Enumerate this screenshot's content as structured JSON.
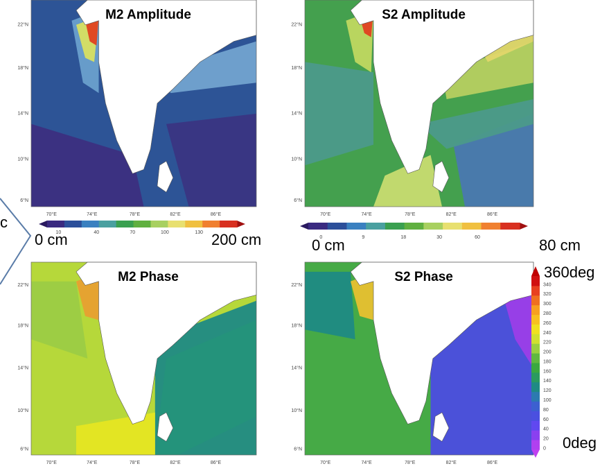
{
  "edge_text": "c",
  "panels": [
    {
      "title": "M2 Amplitude"
    },
    {
      "title": "S2 Amplitude"
    },
    {
      "title": "M2 Phase"
    },
    {
      "title": "S2 Phase"
    }
  ],
  "lat_labels": [
    "22°N",
    "18°N",
    "14°N",
    "10°N",
    "6°N"
  ],
  "lon_labels": [
    "70°E",
    "74°E",
    "78°E",
    "82°E",
    "86°E"
  ],
  "colorbars": {
    "m2": {
      "ticks": [
        "10",
        "40",
        "70",
        "100",
        "130"
      ],
      "min_label": "0 cm",
      "max_label": "200 cm"
    },
    "s2": {
      "ticks": [
        "0",
        "9",
        "18",
        "30",
        "60"
      ],
      "min_label": "0 cm",
      "max_label": "80 cm"
    },
    "phase": {
      "ticks": [
        "0",
        "20",
        "40",
        "60",
        "80",
        "100",
        "120",
        "140",
        "160",
        "180",
        "200",
        "220",
        "240",
        "260",
        "280",
        "300",
        "320",
        "340"
      ],
      "min_label": "0deg",
      "max_label": "360deg"
    }
  }
}
